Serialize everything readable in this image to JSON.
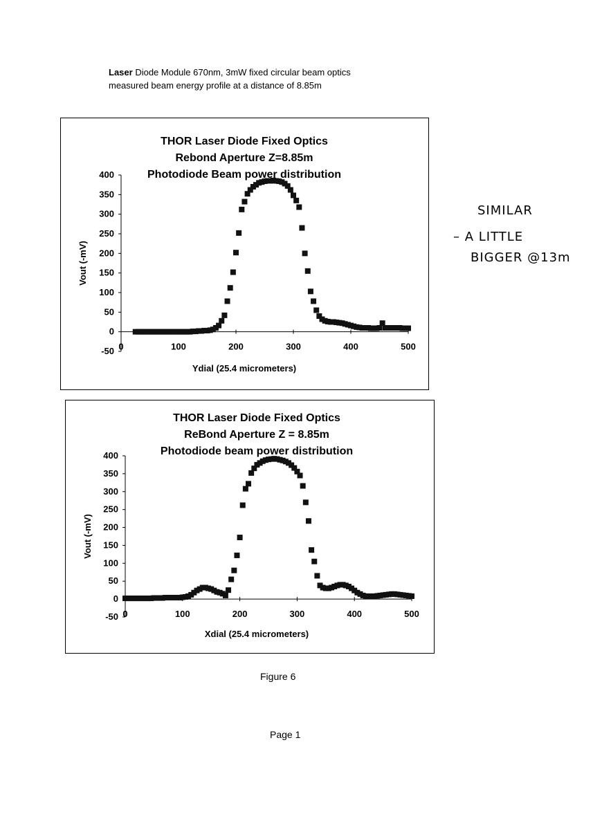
{
  "caption": {
    "line1_bold": "Laser",
    "line1_rest": " Diode Module 670nm, 3mW  fixed circular beam optics",
    "line2": "measured beam energy profile at a distance of 8.85m"
  },
  "notes": {
    "line1": "SIMILAR",
    "line2": "– A LITTLE",
    "line3": "BIGGER @13m"
  },
  "footer": {
    "figure": "Figure 6",
    "page": "Page 1"
  },
  "chart_data": [
    {
      "type": "scatter",
      "title_lines": [
        "THOR Laser Diode Fixed Optics",
        "Rebond Aperture    Z=8.85m",
        "Photodiode Beam power distribution"
      ],
      "xlabel": "Ydial  (25.4  micrometers)",
      "ylabel": "Vout  (-mV)",
      "xlim": [
        0,
        500
      ],
      "ylim": [
        -50,
        400
      ],
      "xticks": [
        0,
        100,
        200,
        300,
        400,
        500
      ],
      "yticks": [
        -50,
        0,
        50,
        100,
        150,
        200,
        250,
        300,
        350,
        400
      ],
      "marker": "square",
      "series": [
        {
          "x": [
            25,
            30,
            35,
            40,
            45,
            50,
            55,
            60,
            65,
            70,
            75,
            80,
            85,
            90,
            95,
            100,
            105,
            110,
            115,
            120,
            125,
            130,
            135,
            140,
            145,
            150,
            155,
            160,
            165,
            170,
            175,
            180,
            185,
            190,
            195,
            200,
            205,
            210,
            215,
            220,
            225,
            230,
            235,
            240,
            245,
            250,
            255,
            260,
            265,
            270,
            275,
            280,
            285,
            290,
            295,
            300,
            305,
            310,
            315,
            320,
            325,
            330,
            335,
            340,
            345,
            350,
            355,
            360,
            365,
            370,
            375,
            380,
            385,
            390,
            395,
            400,
            405,
            410,
            415,
            420,
            425,
            430,
            435,
            440,
            445,
            450,
            455,
            460,
            465,
            470,
            475,
            480,
            485,
            490,
            495,
            500
          ],
          "y": [
            0,
            0,
            0,
            0,
            0,
            0,
            0,
            0,
            0,
            0,
            0,
            0,
            0,
            0,
            0,
            0,
            0,
            0,
            0,
            0,
            1,
            1,
            2,
            2,
            3,
            3,
            4,
            6,
            10,
            16,
            28,
            42,
            78,
            112,
            152,
            202,
            252,
            312,
            332,
            352,
            362,
            370,
            375,
            380,
            382,
            384,
            385,
            385,
            386,
            385,
            384,
            382,
            378,
            372,
            362,
            348,
            335,
            318,
            265,
            200,
            155,
            103,
            78,
            55,
            40,
            32,
            28,
            26,
            25,
            25,
            24,
            23,
            22,
            20,
            18,
            16,
            14,
            12,
            11,
            10,
            10,
            10,
            9,
            9,
            9,
            10,
            22,
            10,
            10,
            10,
            10,
            10,
            10,
            9,
            9,
            9
          ]
        }
      ]
    },
    {
      "type": "scatter",
      "title_lines": [
        "THOR Laser Diode Fixed Optics",
        "ReBond Aperture   Z = 8.85m",
        "Photodiode beam power distribution"
      ],
      "xlabel": "Xdial  (25.4  micrometers)",
      "ylabel": "Vout  (-mV)",
      "xlim": [
        0,
        500
      ],
      "ylim": [
        -50,
        400
      ],
      "xticks": [
        0,
        100,
        200,
        300,
        400,
        500
      ],
      "yticks": [
        -50,
        0,
        50,
        100,
        150,
        200,
        250,
        300,
        350,
        400
      ],
      "marker": "square",
      "series": [
        {
          "x": [
            0,
            5,
            10,
            15,
            20,
            25,
            30,
            35,
            40,
            45,
            50,
            55,
            60,
            65,
            70,
            75,
            80,
            85,
            90,
            95,
            100,
            105,
            110,
            115,
            120,
            125,
            130,
            135,
            140,
            145,
            150,
            155,
            160,
            165,
            170,
            175,
            180,
            185,
            190,
            195,
            200,
            205,
            210,
            215,
            220,
            225,
            230,
            235,
            240,
            245,
            250,
            255,
            260,
            265,
            270,
            275,
            280,
            285,
            290,
            295,
            300,
            305,
            310,
            315,
            320,
            325,
            330,
            335,
            340,
            345,
            350,
            355,
            360,
            365,
            370,
            375,
            380,
            385,
            390,
            395,
            400,
            405,
            410,
            415,
            420,
            425,
            430,
            435,
            440,
            445,
            450,
            455,
            460,
            465,
            470,
            475,
            480,
            485,
            490,
            495,
            500
          ],
          "y": [
            2,
            2,
            2,
            2,
            2,
            2,
            2,
            2,
            2,
            2,
            3,
            3,
            3,
            3,
            4,
            4,
            4,
            4,
            4,
            4,
            5,
            6,
            8,
            12,
            18,
            24,
            28,
            32,
            32,
            30,
            28,
            24,
            20,
            18,
            15,
            10,
            25,
            55,
            80,
            122,
            172,
            262,
            308,
            322,
            352,
            365,
            375,
            380,
            385,
            388,
            390,
            391,
            392,
            391,
            389,
            387,
            384,
            380,
            374,
            366,
            356,
            345,
            316,
            270,
            218,
            137,
            105,
            65,
            38,
            32,
            30,
            30,
            32,
            35,
            38,
            40,
            40,
            38,
            35,
            30,
            24,
            18,
            14,
            10,
            8,
            8,
            8,
            8,
            9,
            10,
            11,
            12,
            13,
            14,
            14,
            13,
            12,
            11,
            10,
            9,
            8
          ]
        }
      ]
    }
  ]
}
